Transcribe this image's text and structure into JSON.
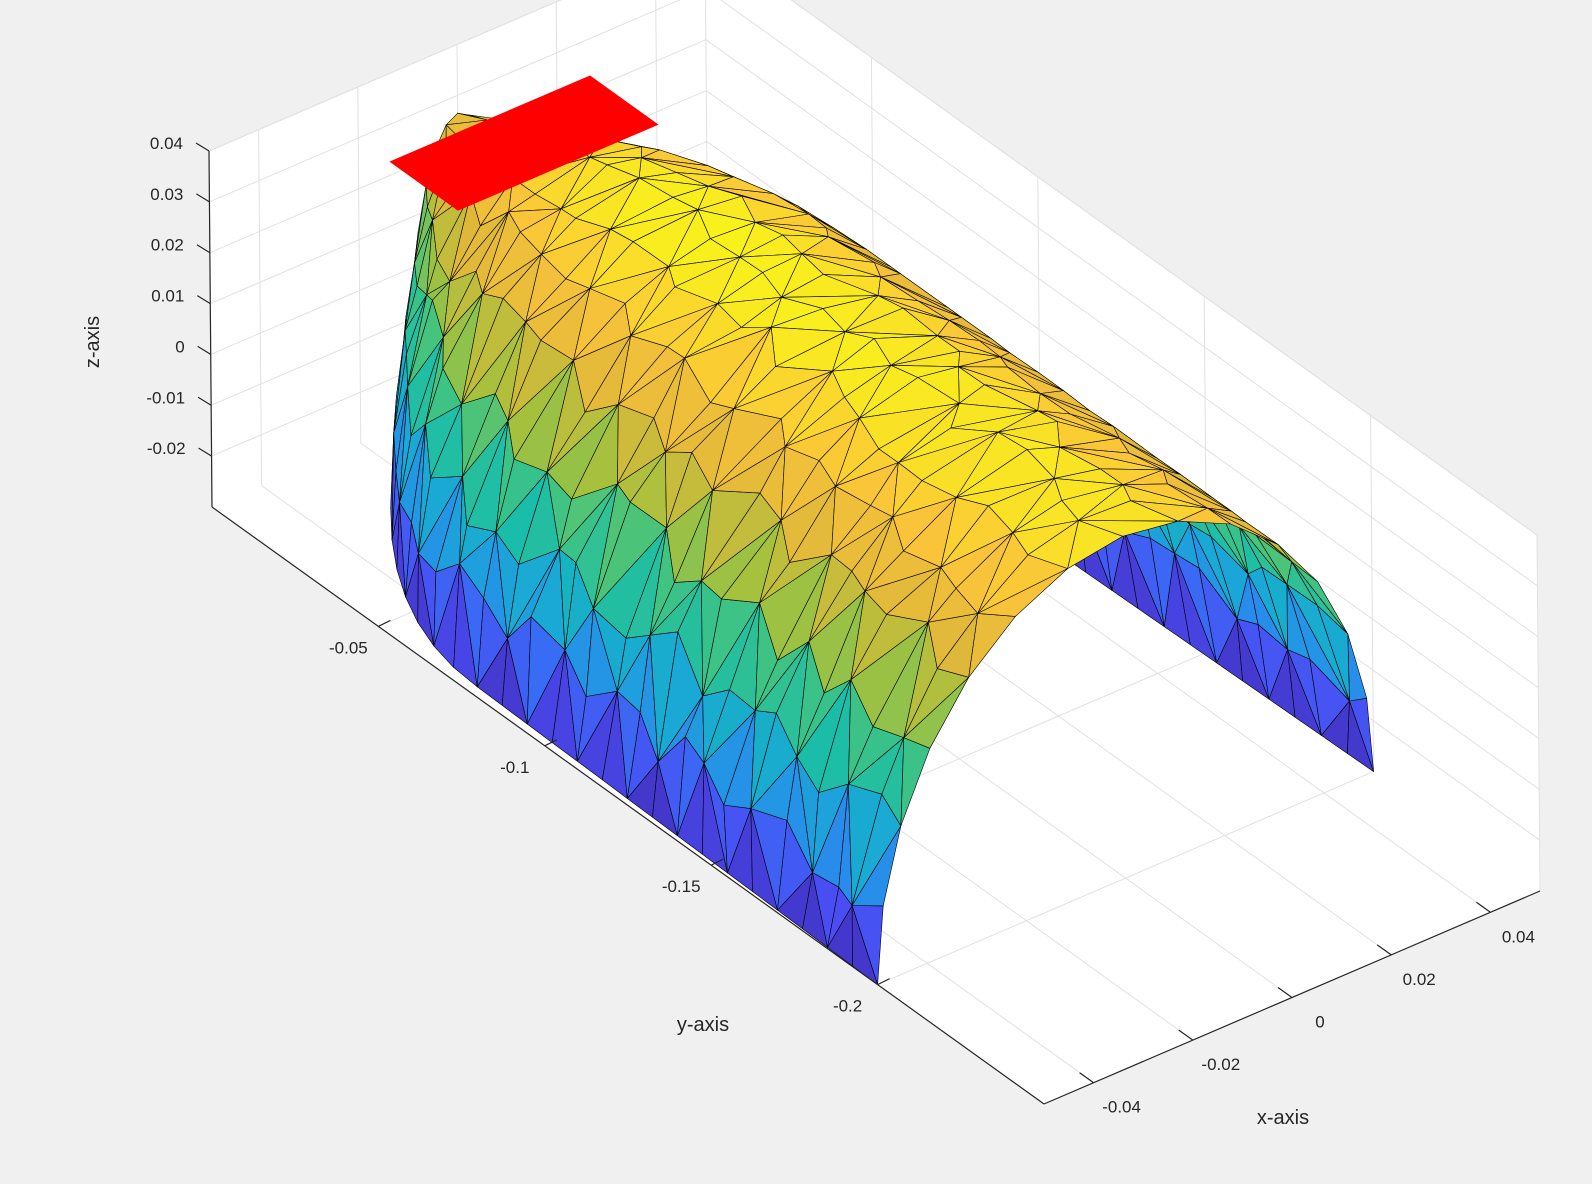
{
  "chart_data": {
    "type": "surface",
    "title": "",
    "xlabel": "x-axis",
    "ylabel": "y-axis",
    "zlabel": "z-axis",
    "xlim": [
      -0.05,
      0.05
    ],
    "ylim": [
      -0.25,
      0
    ],
    "zlim": [
      -0.03,
      0.04
    ],
    "x_ticks": [
      "-0.04",
      "-0.02",
      "0",
      "0.02",
      "0.04"
    ],
    "x_tick_values": [
      -0.04,
      -0.02,
      0,
      0.02,
      0.04
    ],
    "y_ticks": [
      "-0.05",
      "-0.1",
      "-0.15",
      "-0.2"
    ],
    "y_tick_values": [
      -0.05,
      -0.1,
      -0.15,
      -0.2
    ],
    "z_ticks": [
      "0.04",
      "0.03",
      "0.02",
      "0.01",
      "0",
      "-0.01",
      "-0.02"
    ],
    "z_tick_values": [
      0.04,
      0.03,
      0.02,
      0.01,
      0,
      -0.01,
      -0.02
    ],
    "grid": true,
    "colormap": "parula",
    "colormap_stops": [
      "#3e26a8",
      "#4a4cf3",
      "#2f80f4",
      "#1aa8d6",
      "#14bcb0",
      "#45c47e",
      "#a4c13e",
      "#e0b83a",
      "#fac43a",
      "#f9fb15"
    ],
    "surface_shape": "half-cylinder shell closed at the y = 0 end, open at the y = -0.2 end",
    "surface_radius": 0.05,
    "surface_y_range": [
      -0.2,
      0
    ],
    "surface_z_range": [
      -0.03,
      0.04
    ],
    "highlight_patch": {
      "color": "#ff0000",
      "x_range": [
        -0.02,
        0.02
      ],
      "y_range": [
        -0.03,
        -0.01
      ],
      "z": 0.03
    }
  },
  "colors": {
    "background": "#f0f0f0",
    "axes_face": "#ffffff",
    "grid": "#e1e1e1",
    "axis_line": "#262626",
    "mesh_edge": "#000000",
    "highlight": "#ff0000"
  }
}
